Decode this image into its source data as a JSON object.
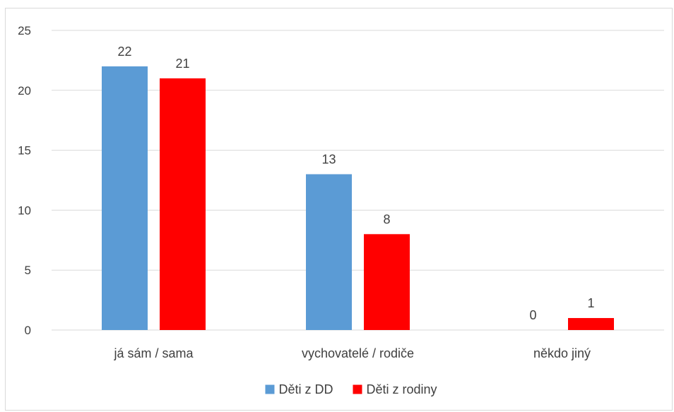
{
  "chart_data": {
    "type": "bar",
    "title": "",
    "xlabel": "",
    "ylabel": "",
    "categories": [
      "já sám / sama",
      "vychovatelé / rodiče",
      "někdo jiný"
    ],
    "series": [
      {
        "name": "Děti z DD",
        "values": [
          22,
          13,
          0
        ],
        "color": "#5b9bd5"
      },
      {
        "name": "Děti z rodiny",
        "values": [
          21,
          8,
          1
        ],
        "color": "#ff0000"
      }
    ],
    "ylim": [
      0,
      25
    ],
    "yticks": [
      0,
      5,
      10,
      15,
      20,
      25
    ],
    "grid": true,
    "data_labels": true,
    "legend_position": "bottom"
  },
  "colors": {
    "grid": "#d9d9d9",
    "text": "#404040",
    "frame": "#d9d9d9"
  }
}
